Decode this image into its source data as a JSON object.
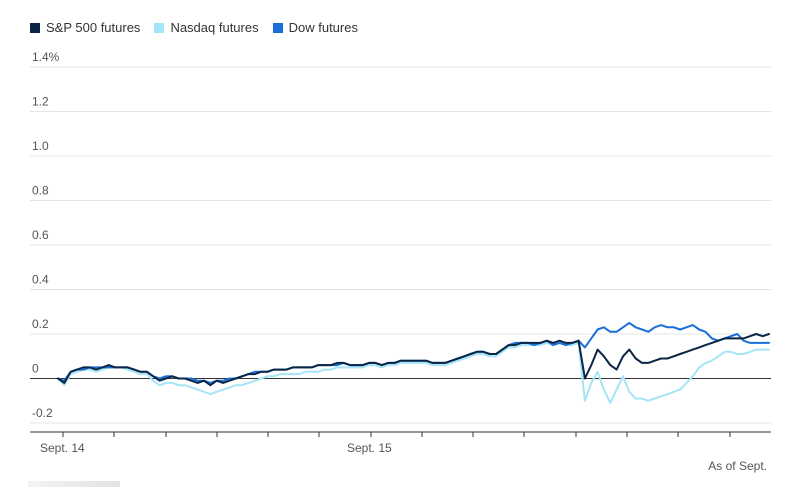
{
  "chart_data": {
    "type": "line",
    "ylim": [
      -0.2,
      1.4
    ],
    "y_ticks": [
      {
        "v": 1.4,
        "label": "1.4%"
      },
      {
        "v": 1.2,
        "label": "1.2"
      },
      {
        "v": 1.0,
        "label": "1.0"
      },
      {
        "v": 0.8,
        "label": "0.8"
      },
      {
        "v": 0.6,
        "label": "0.6"
      },
      {
        "v": 0.4,
        "label": "0.4"
      },
      {
        "v": 0.2,
        "label": "0.2"
      },
      {
        "v": 0.0,
        "label": "0"
      },
      {
        "v": -0.2,
        "label": "-0.2"
      }
    ],
    "x_labels": [
      "Sept. 14",
      "Sept. 15"
    ],
    "grid": true,
    "legend_position": "top-left",
    "note": "As of Sept.",
    "series": [
      {
        "name": "S&P 500 futures",
        "color": "#0b2545",
        "values": [
          0.0,
          -0.02,
          0.03,
          0.04,
          0.05,
          0.05,
          0.04,
          0.05,
          0.06,
          0.05,
          0.05,
          0.05,
          0.04,
          0.03,
          0.03,
          0.01,
          -0.01,
          0.0,
          0.01,
          0.0,
          0.0,
          -0.01,
          -0.02,
          -0.01,
          -0.03,
          -0.01,
          -0.02,
          -0.01,
          0.0,
          0.01,
          0.02,
          0.02,
          0.03,
          0.03,
          0.04,
          0.04,
          0.04,
          0.05,
          0.05,
          0.05,
          0.05,
          0.06,
          0.06,
          0.06,
          0.07,
          0.07,
          0.06,
          0.06,
          0.06,
          0.07,
          0.07,
          0.06,
          0.07,
          0.07,
          0.08,
          0.08,
          0.08,
          0.08,
          0.08,
          0.07,
          0.07,
          0.07,
          0.08,
          0.09,
          0.1,
          0.11,
          0.12,
          0.12,
          0.11,
          0.11,
          0.13,
          0.15,
          0.15,
          0.16,
          0.16,
          0.16,
          0.16,
          0.17,
          0.16,
          0.17,
          0.16,
          0.16,
          0.17,
          0.0,
          0.06,
          0.13,
          0.1,
          0.06,
          0.04,
          0.1,
          0.13,
          0.09,
          0.07,
          0.07,
          0.08,
          0.09,
          0.09,
          0.1,
          0.11,
          0.12,
          0.13,
          0.14,
          0.15,
          0.16,
          0.17,
          0.18,
          0.18,
          0.18,
          0.18,
          0.19,
          0.2,
          0.19,
          0.2
        ]
      },
      {
        "name": "Nasdaq futures",
        "color": "#a6e4f7",
        "values": [
          0.0,
          -0.03,
          0.02,
          0.03,
          0.04,
          0.04,
          0.03,
          0.04,
          0.05,
          0.05,
          0.05,
          0.04,
          0.03,
          0.02,
          0.02,
          -0.01,
          -0.03,
          -0.02,
          -0.02,
          -0.03,
          -0.03,
          -0.04,
          -0.05,
          -0.06,
          -0.07,
          -0.06,
          -0.05,
          -0.04,
          -0.03,
          -0.03,
          -0.02,
          -0.01,
          0.0,
          0.01,
          0.01,
          0.02,
          0.02,
          0.02,
          0.02,
          0.03,
          0.03,
          0.03,
          0.04,
          0.04,
          0.05,
          0.05,
          0.05,
          0.05,
          0.05,
          0.06,
          0.06,
          0.05,
          0.06,
          0.06,
          0.07,
          0.07,
          0.07,
          0.07,
          0.07,
          0.06,
          0.06,
          0.06,
          0.07,
          0.08,
          0.09,
          0.1,
          0.11,
          0.11,
          0.1,
          0.1,
          0.12,
          0.14,
          0.14,
          0.15,
          0.15,
          0.15,
          0.15,
          0.16,
          0.15,
          0.16,
          0.15,
          0.15,
          0.16,
          -0.1,
          -0.02,
          0.03,
          -0.05,
          -0.11,
          -0.05,
          0.01,
          -0.06,
          -0.09,
          -0.09,
          -0.1,
          -0.09,
          -0.08,
          -0.07,
          -0.06,
          -0.05,
          -0.02,
          0.01,
          0.05,
          0.07,
          0.08,
          0.1,
          0.12,
          0.12,
          0.11,
          0.11,
          0.12,
          0.13,
          0.13,
          0.13
        ]
      },
      {
        "name": "Dow futures",
        "color": "#1a6fd8",
        "values": [
          0.0,
          -0.01,
          0.03,
          0.04,
          0.04,
          0.05,
          0.05,
          0.05,
          0.05,
          0.05,
          0.05,
          0.05,
          0.04,
          0.03,
          0.03,
          0.01,
          0.0,
          0.01,
          0.01,
          0.0,
          0.0,
          0.0,
          -0.01,
          -0.01,
          -0.02,
          -0.01,
          -0.01,
          0.0,
          0.0,
          0.01,
          0.02,
          0.03,
          0.03,
          0.03,
          0.04,
          0.04,
          0.04,
          0.05,
          0.05,
          0.05,
          0.05,
          0.06,
          0.06,
          0.06,
          0.06,
          0.07,
          0.06,
          0.06,
          0.06,
          0.07,
          0.07,
          0.06,
          0.07,
          0.07,
          0.08,
          0.08,
          0.08,
          0.08,
          0.08,
          0.07,
          0.07,
          0.07,
          0.08,
          0.09,
          0.1,
          0.11,
          0.12,
          0.12,
          0.11,
          0.11,
          0.13,
          0.15,
          0.16,
          0.16,
          0.16,
          0.15,
          0.16,
          0.17,
          0.15,
          0.16,
          0.15,
          0.16,
          0.17,
          0.14,
          0.18,
          0.22,
          0.23,
          0.21,
          0.21,
          0.23,
          0.25,
          0.23,
          0.22,
          0.21,
          0.23,
          0.24,
          0.23,
          0.23,
          0.22,
          0.23,
          0.24,
          0.22,
          0.21,
          0.18,
          0.17,
          0.18,
          0.19,
          0.2,
          0.17,
          0.16,
          0.16,
          0.16,
          0.16
        ]
      }
    ]
  }
}
